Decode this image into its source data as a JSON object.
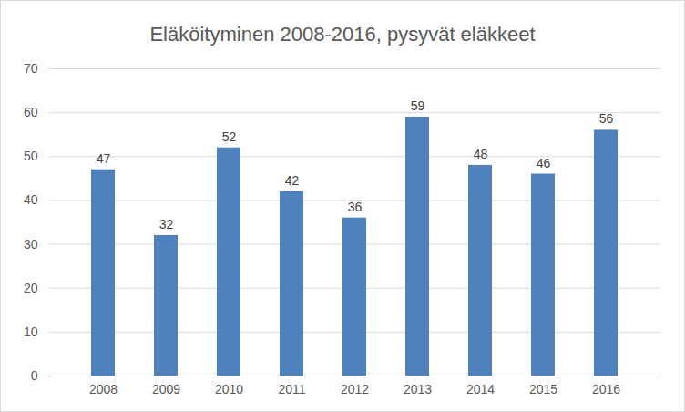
{
  "chart_data": {
    "type": "bar",
    "title": "Eläköityminen 2008-2016, pysyvät eläkkeet",
    "categories": [
      "2008",
      "2009",
      "2010",
      "2011",
      "2012",
      "2013",
      "2014",
      "2015",
      "2016"
    ],
    "values": [
      47,
      32,
      52,
      42,
      36,
      59,
      48,
      46,
      56
    ],
    "color": "#4f81bd",
    "ylim": [
      0,
      70
    ],
    "yticks": [
      0,
      10,
      20,
      30,
      40,
      50,
      60,
      70
    ],
    "grid": true,
    "data_labels": true
  }
}
